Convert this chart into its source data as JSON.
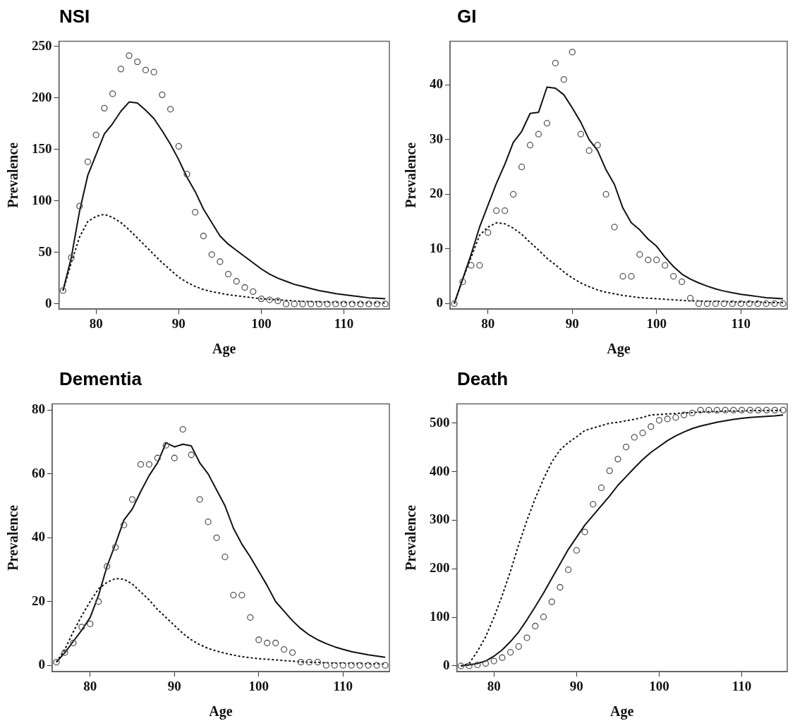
{
  "chart_data": [
    {
      "type": "line",
      "title": "NSI",
      "xlabel": "Age",
      "ylabel": "Prevalence",
      "grid": false,
      "legend": false,
      "x": [
        76,
        77,
        78,
        79,
        80,
        81,
        82,
        83,
        84,
        85,
        86,
        87,
        88,
        89,
        90,
        91,
        92,
        93,
        94,
        95,
        96,
        97,
        98,
        99,
        100,
        101,
        102,
        103,
        104,
        105,
        106,
        107,
        108,
        109,
        110,
        111,
        112,
        113,
        114,
        115
      ],
      "xlim": [
        75.5,
        115.5
      ],
      "xticks": [
        80,
        90,
        100,
        110
      ],
      "ylim": [
        -5,
        255
      ],
      "yticks": [
        0,
        50,
        100,
        150,
        200,
        250
      ],
      "series": [
        {
          "type": "scatter",
          "marker": "circle",
          "color": "#555555",
          "values": [
            13,
            45,
            95,
            138,
            164,
            190,
            204,
            228,
            241,
            235,
            227,
            225,
            203,
            189,
            153,
            126,
            89,
            66,
            48,
            41,
            29,
            22,
            16,
            12,
            5,
            4,
            3,
            0,
            0,
            0,
            0,
            0,
            0,
            0,
            0,
            0,
            0,
            0,
            0,
            0
          ]
        },
        {
          "type": "line",
          "marker": "none",
          "line_style": "solid",
          "color": "#111111",
          "values": [
            13,
            45,
            90,
            125,
            145,
            165,
            175,
            187,
            196,
            195,
            188,
            180,
            168,
            155,
            140,
            123,
            109,
            92,
            79,
            66,
            58,
            52,
            46,
            40,
            34,
            29,
            25,
            22,
            19,
            17,
            15,
            13,
            11.5,
            10,
            9,
            8,
            7,
            6,
            5.5,
            5
          ]
        },
        {
          "type": "line",
          "marker": "none",
          "line_style": "dotted",
          "color": "#111111",
          "values": [
            13,
            40,
            65,
            80,
            85,
            87,
            84,
            79,
            72,
            64,
            56,
            48,
            40,
            33,
            26,
            21,
            17,
            14,
            12,
            10.5,
            9,
            8,
            7,
            6,
            5,
            4.5,
            4,
            3.5,
            3,
            2.5,
            2.3,
            2,
            1.8,
            1.6,
            1.5,
            1.4,
            1.3,
            1.2,
            1.1,
            1
          ]
        }
      ]
    },
    {
      "type": "line",
      "title": "GI",
      "xlabel": "Age",
      "ylabel": "Prevalence",
      "grid": false,
      "legend": false,
      "x": [
        76,
        77,
        78,
        79,
        80,
        81,
        82,
        83,
        84,
        85,
        86,
        87,
        88,
        89,
        90,
        91,
        92,
        93,
        94,
        95,
        96,
        97,
        98,
        99,
        100,
        101,
        102,
        103,
        104,
        105,
        106,
        107,
        108,
        109,
        110,
        111,
        112,
        113,
        114,
        115
      ],
      "xlim": [
        75.5,
        115.5
      ],
      "xticks": [
        80,
        90,
        100,
        110
      ],
      "ylim": [
        -1,
        48
      ],
      "yticks": [
        0,
        10,
        20,
        30,
        40
      ],
      "series": [
        {
          "type": "scatter",
          "marker": "circle",
          "color": "#555555",
          "values": [
            0,
            4,
            7,
            7,
            13,
            17,
            17,
            20,
            25,
            29,
            31,
            33,
            44,
            41,
            46,
            31,
            28,
            29,
            20,
            14,
            5,
            5,
            9,
            8,
            8,
            7,
            5,
            4,
            1,
            0,
            0,
            0,
            0,
            0,
            0,
            0,
            0,
            0,
            0,
            0
          ]
        },
        {
          "type": "line",
          "marker": "none",
          "line_style": "solid",
          "color": "#111111",
          "values": [
            0,
            4.5,
            9,
            14,
            18,
            22,
            25.5,
            29.5,
            31.5,
            34.8,
            35,
            39.6,
            39.4,
            38.2,
            35.8,
            33.2,
            30,
            28,
            24.5,
            21.8,
            17.5,
            14.8,
            13.5,
            11.8,
            10.5,
            8.5,
            6.8,
            5.4,
            4.5,
            3.8,
            3.2,
            2.7,
            2.3,
            2,
            1.7,
            1.5,
            1.3,
            1.1,
            1,
            0.9
          ]
        },
        {
          "type": "line",
          "marker": "none",
          "line_style": "dotted",
          "color": "#111111",
          "values": [
            0,
            4.5,
            8.5,
            12.5,
            14,
            14.8,
            14.6,
            13.8,
            12.7,
            11.2,
            9.8,
            8.3,
            7.1,
            5.8,
            4.7,
            3.8,
            3.1,
            2.5,
            2.1,
            1.8,
            1.5,
            1.3,
            1.1,
            1,
            0.9,
            0.8,
            0.7,
            0.6,
            0.5,
            0.5,
            0.4,
            0.4,
            0.4,
            0.3,
            0.3,
            0.3,
            0.3,
            0.2,
            0.2,
            0.2
          ]
        }
      ]
    },
    {
      "type": "line",
      "title": "Dementia",
      "xlabel": "Age",
      "ylabel": "Prevalence",
      "grid": false,
      "legend": false,
      "x": [
        76,
        77,
        78,
        79,
        80,
        81,
        82,
        83,
        84,
        85,
        86,
        87,
        88,
        89,
        90,
        91,
        92,
        93,
        94,
        95,
        96,
        97,
        98,
        99,
        100,
        101,
        102,
        103,
        104,
        105,
        106,
        107,
        108,
        109,
        110,
        111,
        112,
        113,
        114,
        115
      ],
      "xlim": [
        75.5,
        115.5
      ],
      "xticks": [
        80,
        90,
        100,
        110
      ],
      "ylim": [
        -2,
        82
      ],
      "yticks": [
        0,
        20,
        40,
        60,
        80
      ],
      "series": [
        {
          "type": "scatter",
          "marker": "circle",
          "color": "#555555",
          "values": [
            1,
            4,
            7,
            12,
            13,
            20,
            31,
            37,
            44,
            52,
            63,
            63,
            65,
            69,
            65,
            74,
            66,
            52,
            45,
            40,
            34,
            22,
            22,
            15,
            8,
            7,
            7,
            5,
            4,
            1,
            1,
            1,
            0,
            0,
            0,
            0,
            0,
            0,
            0,
            0
          ]
        },
        {
          "type": "line",
          "marker": "none",
          "line_style": "solid",
          "color": "#111111",
          "values": [
            1,
            4,
            7.5,
            11,
            15,
            22,
            31,
            38,
            45.5,
            49,
            54.5,
            59.5,
            63.5,
            69.8,
            68.5,
            69.3,
            68.8,
            63.5,
            60,
            55,
            50,
            43,
            38,
            34,
            29.5,
            25,
            20,
            17,
            14,
            11.5,
            9.5,
            8,
            6.8,
            5.8,
            5,
            4.3,
            3.8,
            3.3,
            2.9,
            2.5
          ]
        },
        {
          "type": "line",
          "marker": "none",
          "line_style": "dotted",
          "color": "#111111",
          "values": [
            1,
            5,
            10.5,
            15.5,
            20,
            24,
            26,
            27.2,
            27,
            25.5,
            23,
            20.5,
            17.5,
            15,
            12.5,
            10,
            8,
            6.5,
            5.3,
            4.5,
            3.8,
            3.2,
            2.7,
            2.4,
            2.1,
            1.9,
            1.7,
            1.5,
            1.3,
            1.1,
            1,
            0.9,
            0.8,
            0.7,
            0.7,
            0.6,
            0.6,
            0.5,
            0.5,
            0.4
          ]
        }
      ]
    },
    {
      "type": "line",
      "title": "Death",
      "xlabel": "Age",
      "ylabel": "Prevalence",
      "grid": false,
      "legend": false,
      "x": [
        76,
        77,
        78,
        79,
        80,
        81,
        82,
        83,
        84,
        85,
        86,
        87,
        88,
        89,
        90,
        91,
        92,
        93,
        94,
        95,
        96,
        97,
        98,
        99,
        100,
        101,
        102,
        103,
        104,
        105,
        106,
        107,
        108,
        109,
        110,
        111,
        112,
        113,
        114,
        115
      ],
      "xlim": [
        75.5,
        115.5
      ],
      "xticks": [
        80,
        90,
        100,
        110
      ],
      "ylim": [
        -12,
        540
      ],
      "yticks": [
        0,
        100,
        200,
        300,
        400,
        500
      ],
      "series": [
        {
          "type": "scatter",
          "marker": "circle",
          "color": "#555555",
          "values": [
            0,
            0,
            2,
            5,
            10,
            17,
            28,
            40,
            58,
            82,
            101,
            132,
            162,
            198,
            238,
            276,
            333,
            367,
            402,
            426,
            451,
            471,
            480,
            493,
            506,
            509,
            512,
            517,
            521,
            527,
            527,
            527,
            527,
            527,
            527,
            527,
            527,
            527,
            527,
            527
          ]
        },
        {
          "type": "line",
          "marker": "none",
          "line_style": "solid",
          "color": "#111111",
          "values": [
            0,
            2,
            5,
            10,
            20,
            33,
            50,
            70,
            95,
            122,
            150,
            180,
            210,
            240,
            265,
            290,
            310,
            330,
            350,
            372,
            390,
            408,
            425,
            440,
            452,
            464,
            474,
            482,
            489,
            494,
            498,
            502,
            505,
            508,
            510,
            512,
            513,
            514,
            515,
            517
          ]
        },
        {
          "type": "line",
          "marker": "none",
          "line_style": "dotted",
          "color": "#111111",
          "values": [
            0,
            5,
            30,
            60,
            100,
            145,
            195,
            250,
            300,
            345,
            385,
            420,
            445,
            460,
            472,
            485,
            490,
            495,
            500,
            502,
            505,
            508,
            512,
            517,
            518,
            519,
            520,
            521,
            522,
            523,
            524,
            524,
            525,
            525,
            525,
            526,
            526,
            526,
            526,
            527
          ]
        }
      ]
    }
  ]
}
